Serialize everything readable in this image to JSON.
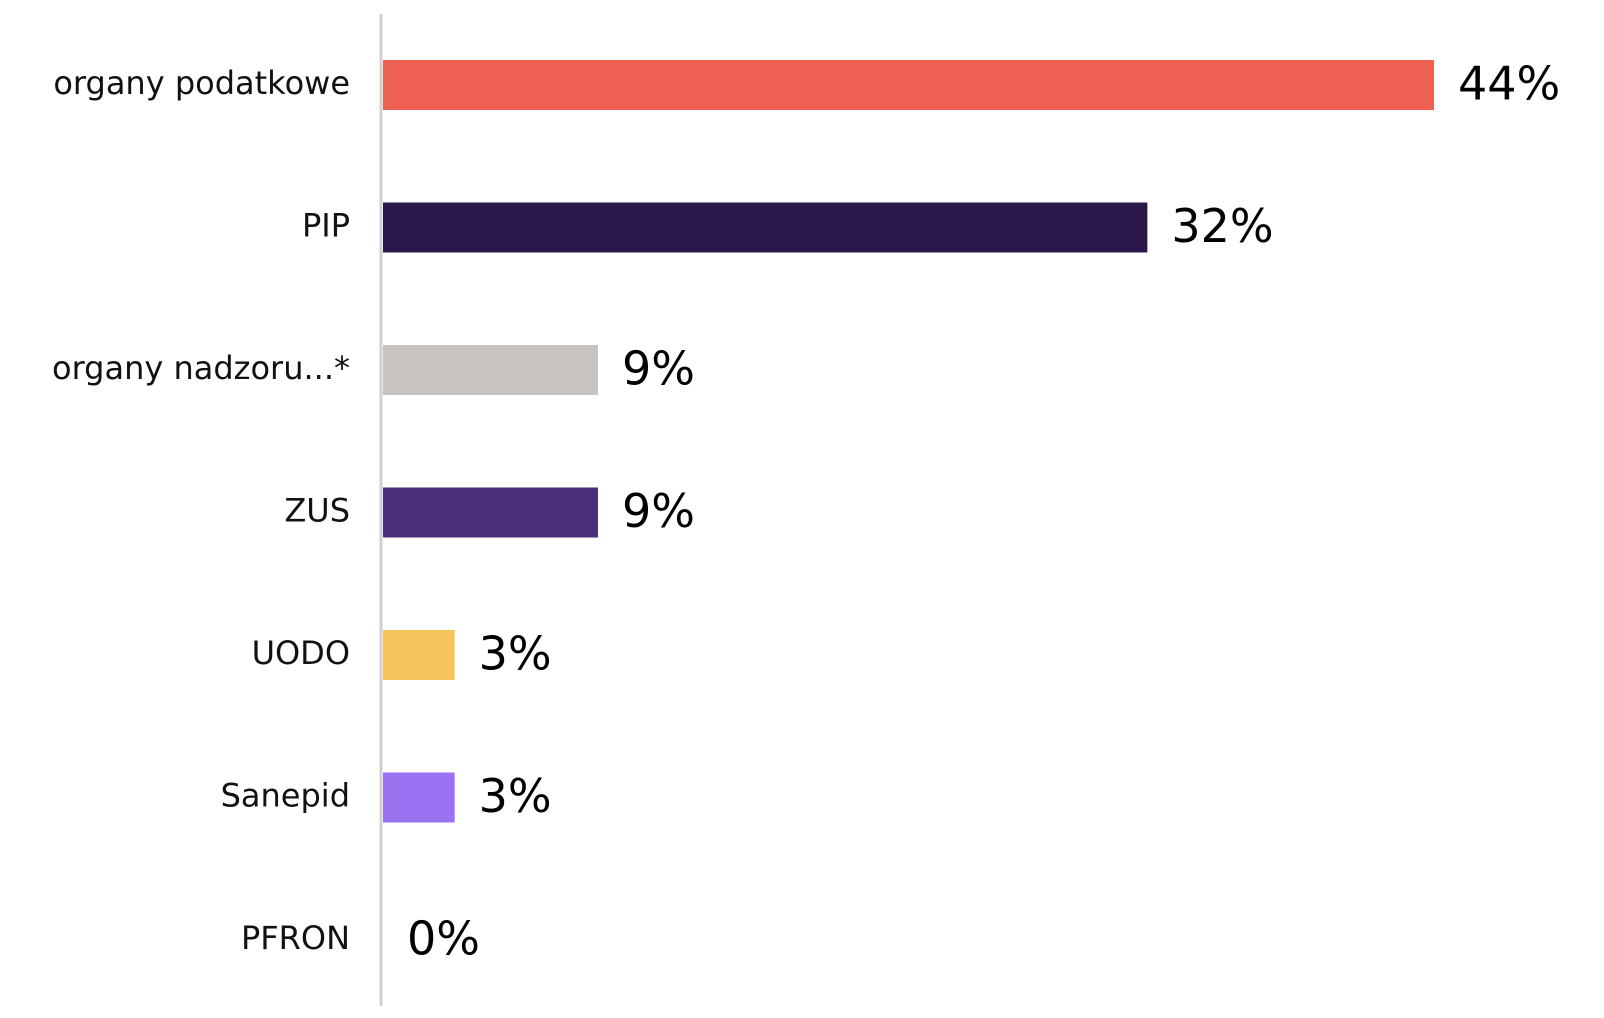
{
  "chart_data": {
    "type": "bar",
    "orientation": "horizontal",
    "categories": [
      "organy podatkowe",
      "PIP",
      "organy nadzoru...*",
      "ZUS",
      "UODO",
      "Sanepid",
      "PFRON"
    ],
    "values": [
      44,
      32,
      9,
      9,
      3,
      3,
      0
    ],
    "value_labels": [
      "44%",
      "32%",
      "9%",
      "9%",
      "3%",
      "3%",
      "0%"
    ],
    "colors": [
      "#EE6052",
      "#2A174B",
      "#C9C4BF",
      "#4B2E7A",
      "#F5C45A",
      "#9B72F2",
      "#9B72F2"
    ],
    "axis_color": "#D0D0D0",
    "xlim": [
      0,
      44
    ],
    "grid": false,
    "legend": "none"
  }
}
